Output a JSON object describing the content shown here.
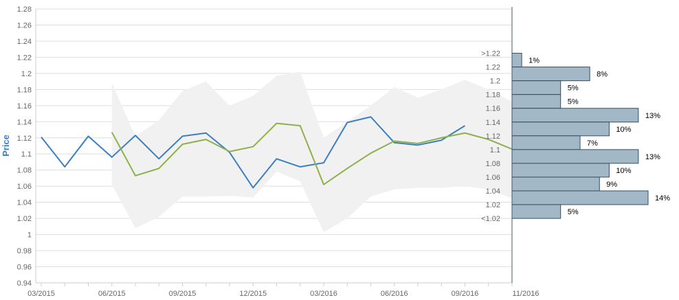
{
  "chart_data": {
    "type": "line",
    "ylabel": "Price",
    "ylim": [
      0.94,
      1.28
    ],
    "ytick_step": 0.02,
    "x_ticks": [
      "03/2015",
      "06/2015",
      "09/2015",
      "12/2015",
      "03/2016",
      "06/2016",
      "09/2016",
      "11/2016"
    ],
    "x_months": [
      "03/2015",
      "04/2015",
      "05/2015",
      "06/2015",
      "07/2015",
      "08/2015",
      "09/2015",
      "10/2015",
      "11/2015",
      "12/2015",
      "01/2016",
      "02/2016",
      "03/2016",
      "04/2016",
      "05/2016",
      "06/2016",
      "07/2016",
      "08/2016",
      "09/2016",
      "10/2016",
      "11/2016"
    ],
    "series": [
      {
        "color": "#3a7fc4",
        "values": [
          1.121,
          1.084,
          1.122,
          1.096,
          1.123,
          1.094,
          1.122,
          1.126,
          1.102,
          1.058,
          1.094,
          1.084,
          1.089,
          1.139,
          1.146,
          1.114,
          1.111,
          1.117,
          1.135,
          null,
          null
        ]
      },
      {
        "color": "#8db04a",
        "values": [
          null,
          null,
          null,
          1.127,
          1.073,
          1.082,
          1.112,
          1.118,
          1.103,
          1.109,
          1.138,
          1.135,
          1.062,
          1.082,
          1.101,
          1.116,
          1.113,
          1.12,
          1.126,
          1.118,
          1.106
        ]
      }
    ],
    "range_band": {
      "color": "#f1f1f1",
      "x_index": [
        3,
        4,
        5,
        6,
        7,
        8,
        9,
        10,
        11,
        12,
        13,
        14,
        15,
        16,
        17,
        18,
        19,
        20
      ],
      "high": [
        1.188,
        1.122,
        1.142,
        1.178,
        1.19,
        1.16,
        1.172,
        1.197,
        1.202,
        1.12,
        1.14,
        1.16,
        1.183,
        1.17,
        1.18,
        1.192,
        1.18,
        1.165
      ],
      "low": [
        1.062,
        1.008,
        1.022,
        1.047,
        1.047,
        1.048,
        1.046,
        1.078,
        1.066,
        1.003,
        1.02,
        1.047,
        1.056,
        1.058,
        1.058,
        1.06,
        1.056,
        1.045
      ]
    },
    "histogram": {
      "color": "#a3b8c6",
      "bins": [
        ">1.22",
        "1.22",
        "1.2",
        "1.18",
        "1.16",
        "1.14",
        "1.12",
        "1.1",
        "1.08",
        "1.06",
        "1.04",
        "1.02",
        "<1.02"
      ],
      "values": [
        1,
        8,
        5,
        5,
        13,
        10,
        7,
        13,
        10,
        9,
        14,
        5
      ],
      "labels": [
        "1%",
        "8%",
        "5%",
        "5%",
        "13%",
        "10%",
        "7%",
        "13%",
        "10%",
        "9%",
        "14%",
        "5%"
      ]
    }
  }
}
